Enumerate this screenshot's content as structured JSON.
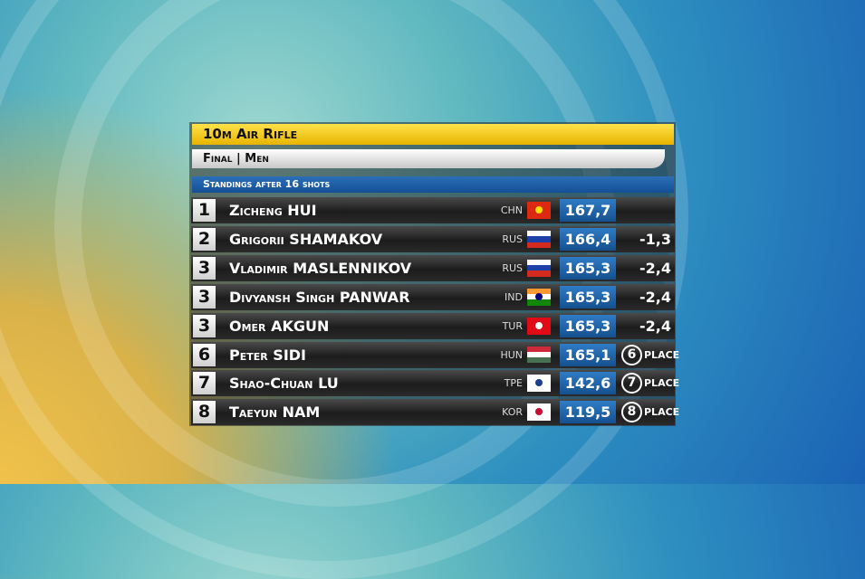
{
  "header": {
    "event": "10m Air Rifle",
    "phase": "Final | Men",
    "status": "Standings after 16 shots"
  },
  "table": {
    "rows": [
      {
        "rank": "1",
        "name": "Zicheng HUI",
        "country": "CHN",
        "flag": {
          "stripes": [
            "#de2910"
          ],
          "emblem": "#ffde00"
        },
        "score": "167,7"
      },
      {
        "rank": "2",
        "name": "Grigorii SHAMAKOV",
        "country": "RUS",
        "flag": {
          "stripes": [
            "#ffffff",
            "#1c3fa8",
            "#d52b1e"
          ]
        },
        "score": "166,4",
        "behind": "-1,3"
      },
      {
        "rank": "3",
        "name": "Vladimir MASLENNIKOV",
        "country": "RUS",
        "flag": {
          "stripes": [
            "#ffffff",
            "#1c3fa8",
            "#d52b1e"
          ]
        },
        "score": "165,3",
        "behind": "-2,4"
      },
      {
        "rank": "3",
        "name": "Divyansh Singh PANWAR",
        "country": "IND",
        "flag": {
          "stripes": [
            "#ff9933",
            "#ffffff",
            "#138808"
          ],
          "emblem": "#000080"
        },
        "score": "165,3",
        "behind": "-2,4"
      },
      {
        "rank": "3",
        "name": "Omer AKGUN",
        "country": "TUR",
        "flag": {
          "stripes": [
            "#e30a17"
          ],
          "emblem": "#ffffff"
        },
        "score": "165,3",
        "behind": "-2,4"
      },
      {
        "rank": "6",
        "name": "Peter SIDI",
        "country": "HUN",
        "flag": {
          "stripes": [
            "#ce2939",
            "#ffffff",
            "#477050"
          ]
        },
        "score": "165,1",
        "place": {
          "number": "6",
          "label": "Place"
        }
      },
      {
        "rank": "7",
        "name": "Shao-Chuan LU",
        "country": "TPE",
        "flag": {
          "stripes": [
            "#ffffff"
          ],
          "emblem": "#1b3f8f"
        },
        "score": "142,6",
        "place": {
          "number": "7",
          "label": "Place"
        }
      },
      {
        "rank": "8",
        "name": "Taeyun NAM",
        "country": "KOR",
        "flag": {
          "stripes": [
            "#ffffff"
          ],
          "emblem": "#c60c30"
        },
        "score": "119,5",
        "place": {
          "number": "8",
          "label": "Place"
        }
      }
    ]
  }
}
